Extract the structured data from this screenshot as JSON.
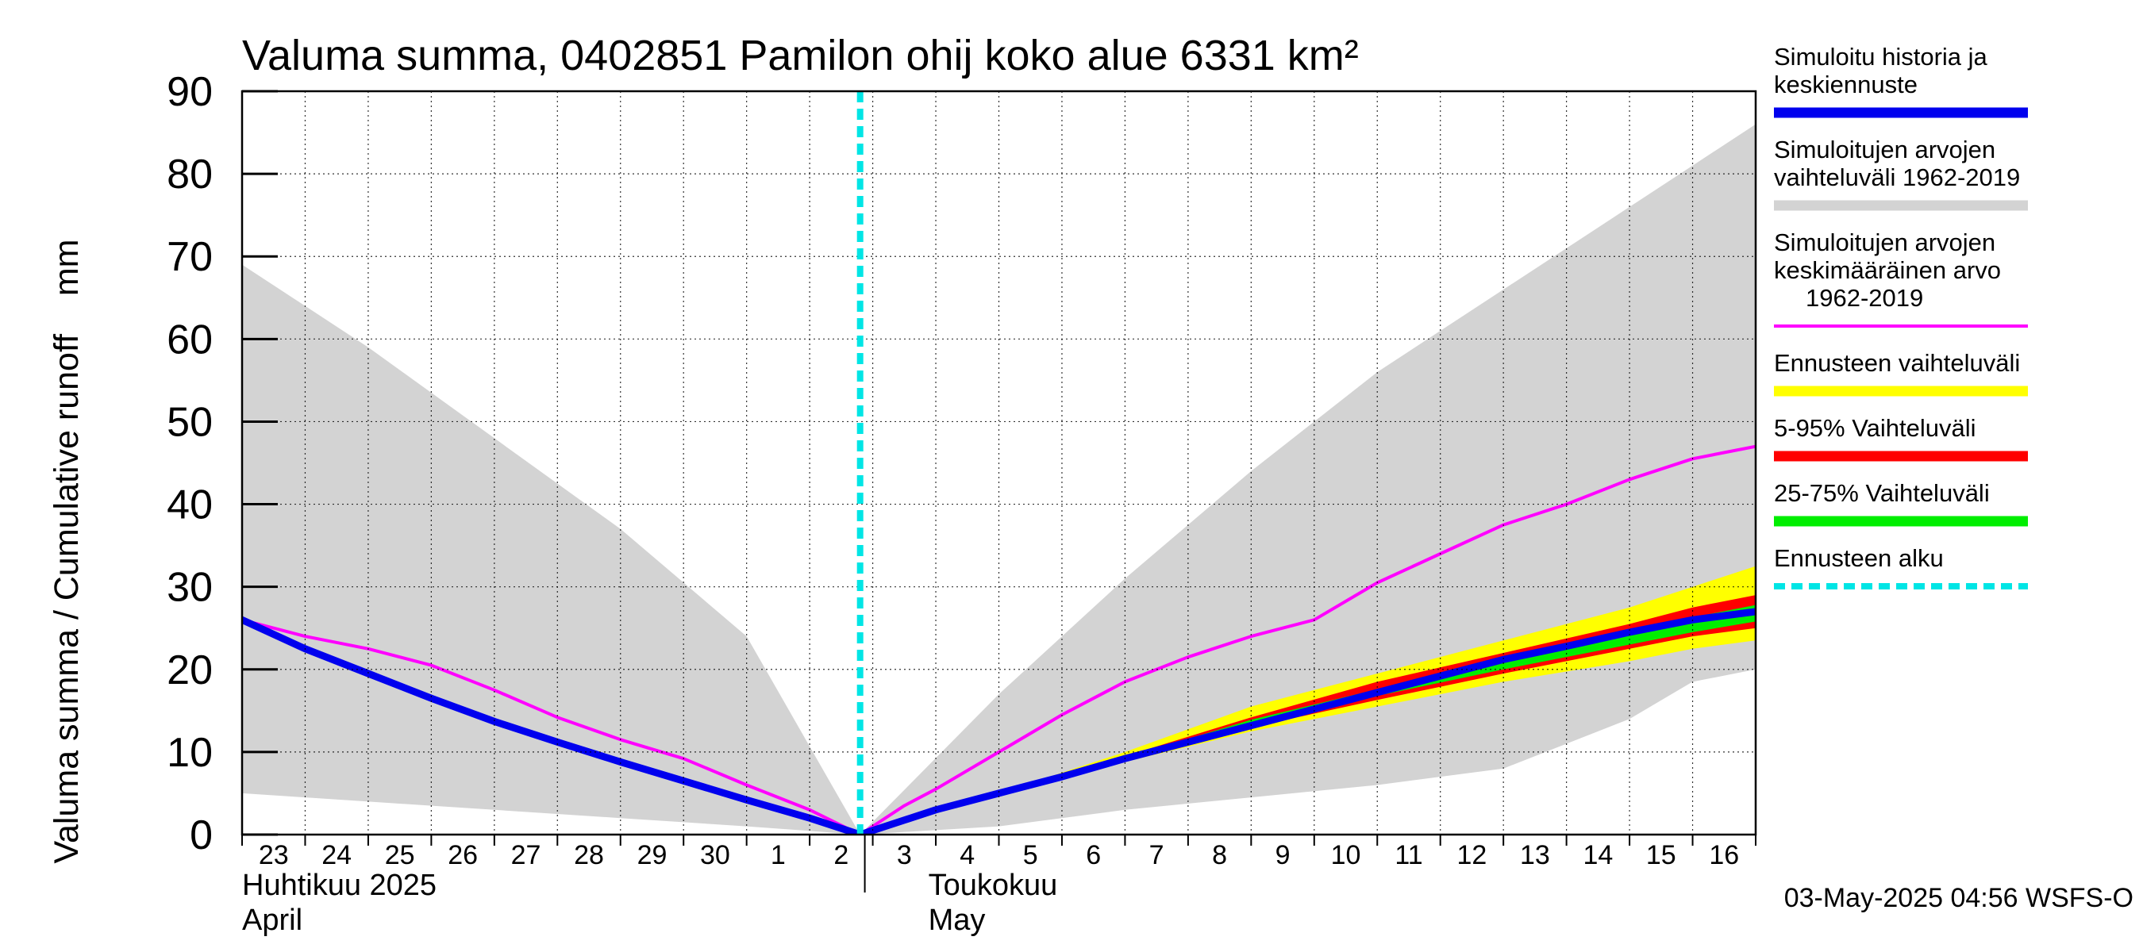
{
  "chart_data": {
    "type": "area",
    "title": "Valuma summa, 0402851 Pamilon ohij koko alue 6331 km²",
    "ylabel": "Valuma summa / Cumulative runoff    mm",
    "ylim": [
      0,
      90
    ],
    "yticks": [
      "0",
      "10",
      "20",
      "30",
      "40",
      "50",
      "60",
      "70",
      "80",
      "90"
    ],
    "grid": true,
    "x_range_days": [
      -10.0,
      14.0
    ],
    "x_day_labels": [
      {
        "d": -9.5,
        "label": "23"
      },
      {
        "d": -8.5,
        "label": "24"
      },
      {
        "d": -7.5,
        "label": "25"
      },
      {
        "d": -6.5,
        "label": "26"
      },
      {
        "d": -5.5,
        "label": "27"
      },
      {
        "d": -4.5,
        "label": "28"
      },
      {
        "d": -3.5,
        "label": "29"
      },
      {
        "d": -2.5,
        "label": "30"
      },
      {
        "d": -1.5,
        "label": "1"
      },
      {
        "d": -0.5,
        "label": "2"
      },
      {
        "d": 0.5,
        "label": "3"
      },
      {
        "d": 1.5,
        "label": "4"
      },
      {
        "d": 2.5,
        "label": "5"
      },
      {
        "d": 3.5,
        "label": "6"
      },
      {
        "d": 4.5,
        "label": "7"
      },
      {
        "d": 5.5,
        "label": "8"
      },
      {
        "d": 6.5,
        "label": "9"
      },
      {
        "d": 7.5,
        "label": "10"
      },
      {
        "d": 8.5,
        "label": "11"
      },
      {
        "d": 9.5,
        "label": "12"
      },
      {
        "d": 10.5,
        "label": "13"
      },
      {
        "d": 11.5,
        "label": "14"
      },
      {
        "d": 12.5,
        "label": "15"
      },
      {
        "d": 13.5,
        "label": "16"
      }
    ],
    "month_labels": [
      {
        "d": -10.0,
        "label_fi": "Huhtikuu  2025",
        "label_en": "April"
      },
      {
        "d": 0.0,
        "label_fi": "Toukokuu",
        "label_en": "May"
      }
    ],
    "forecast_start_day": -0.2,
    "series": [
      {
        "name": "Simuloitujen arvojen vaihteluväli 1962-2019",
        "kind": "band",
        "color": "#d3d3d3",
        "x": [
          -10,
          -8,
          -6,
          -4,
          -2,
          -0.2,
          2,
          4,
          6,
          8,
          10,
          12,
          13,
          14
        ],
        "upper": [
          69,
          59,
          48,
          37,
          24,
          0,
          17,
          31,
          44,
          56,
          66,
          76,
          81,
          86
        ],
        "lower": [
          5,
          4,
          3,
          2,
          1,
          0,
          1,
          3,
          4.5,
          6,
          8,
          14,
          18.5,
          20
        ]
      },
      {
        "name": "Ennusteen vaihteluväli",
        "kind": "band",
        "color": "#ffff00",
        "x": [
          -0.2,
          2,
          4,
          6,
          8,
          10,
          12,
          13,
          14
        ],
        "upper": [
          0,
          5,
          10,
          15.5,
          19.5,
          23.5,
          27.5,
          30,
          32.5
        ],
        "lower": [
          0,
          4.7,
          8.8,
          12.5,
          15.5,
          18.5,
          21,
          22.5,
          23.5
        ]
      },
      {
        "name": "5-95% Vaihteluväli",
        "kind": "band",
        "color": "#ff0000",
        "x": [
          -0.2,
          2,
          4,
          6,
          8,
          10,
          12,
          13,
          14
        ],
        "upper": [
          0,
          4.9,
          9.5,
          14.2,
          18.5,
          22,
          25.5,
          27.5,
          29
        ],
        "lower": [
          0,
          4.8,
          9,
          13,
          16.3,
          19.5,
          22.5,
          24,
          25
        ]
      },
      {
        "name": "25-75% Vaihteluväli",
        "kind": "band",
        "color": "#00ee00",
        "x": [
          -0.2,
          2,
          4,
          6,
          8,
          10,
          12,
          13,
          14
        ],
        "upper": [
          0,
          4.85,
          9.3,
          13.9,
          17.6,
          21.2,
          24.5,
          26.3,
          27.8
        ],
        "lower": [
          0,
          4.8,
          9.1,
          13.3,
          16.8,
          20,
          23,
          24.5,
          25.8
        ]
      },
      {
        "name": "Simuloitujen arvojen keskimääräinen arvo 1962-2019",
        "kind": "line",
        "color": "#ff00ff",
        "x": [
          -10,
          -9,
          -8,
          -7,
          -6,
          -5,
          -4,
          -3,
          -2,
          -1,
          -0.2,
          0.5,
          1,
          2,
          3,
          4,
          5,
          6,
          7,
          8,
          9,
          10,
          11,
          12,
          13,
          14
        ],
        "values": [
          26,
          24,
          22.5,
          20.5,
          17.5,
          14.2,
          11.5,
          9.2,
          6,
          3,
          0,
          3.5,
          5.5,
          10,
          14.5,
          18.5,
          21.5,
          24,
          26,
          30.5,
          34,
          37.5,
          40,
          43,
          45.5,
          47
        ]
      },
      {
        "name": "Simuloitu historia ja keskiennuste",
        "kind": "line",
        "color": "#0000ee",
        "x": [
          -10,
          -9,
          -8,
          -7,
          -6,
          -5,
          -4,
          -3,
          -2,
          -1,
          -0.2,
          1,
          2,
          3,
          4,
          5,
          6,
          7,
          8,
          9,
          10,
          11,
          12,
          13,
          14
        ],
        "values": [
          26,
          22.5,
          19.5,
          16.5,
          13.7,
          11.2,
          8.8,
          6.5,
          4.2,
          2,
          0,
          3,
          5,
          7,
          9.2,
          11.2,
          13.2,
          15.2,
          17.2,
          19.2,
          21.2,
          22.8,
          24.5,
          26,
          27
        ]
      }
    ]
  },
  "legend": {
    "items": [
      {
        "line1": "Simuloitu historia ja",
        "line2": "keskiennuste",
        "line3": "",
        "color": "#0000ee",
        "style": "solid"
      },
      {
        "line1": "Simuloitujen arvojen",
        "line2": "vaihteluväli 1962-2019",
        "line3": "",
        "color": "#d3d3d3",
        "style": "solid"
      },
      {
        "line1": "Simuloitujen arvojen",
        "line2": "keskimääräinen arvo",
        "line3": "1962-2019",
        "color": "#ff00ff",
        "style": "solid"
      },
      {
        "line1": "Ennusteen vaihteluväli",
        "line2": "",
        "line3": "",
        "color": "#ffff00",
        "style": "solid"
      },
      {
        "line1": "5-95% Vaihteluväli",
        "line2": "",
        "line3": "",
        "color": "#ff0000",
        "style": "solid"
      },
      {
        "line1": "25-75% Vaihteluväli",
        "line2": "",
        "line3": "",
        "color": "#00ee00",
        "style": "solid"
      },
      {
        "line1": "Ennusteen alku",
        "line2": "",
        "line3": "",
        "color": "#00e5e5",
        "style": "dashed"
      }
    ]
  },
  "footer": {
    "timestamp": "03-May-2025 04:56 WSFS-O"
  }
}
